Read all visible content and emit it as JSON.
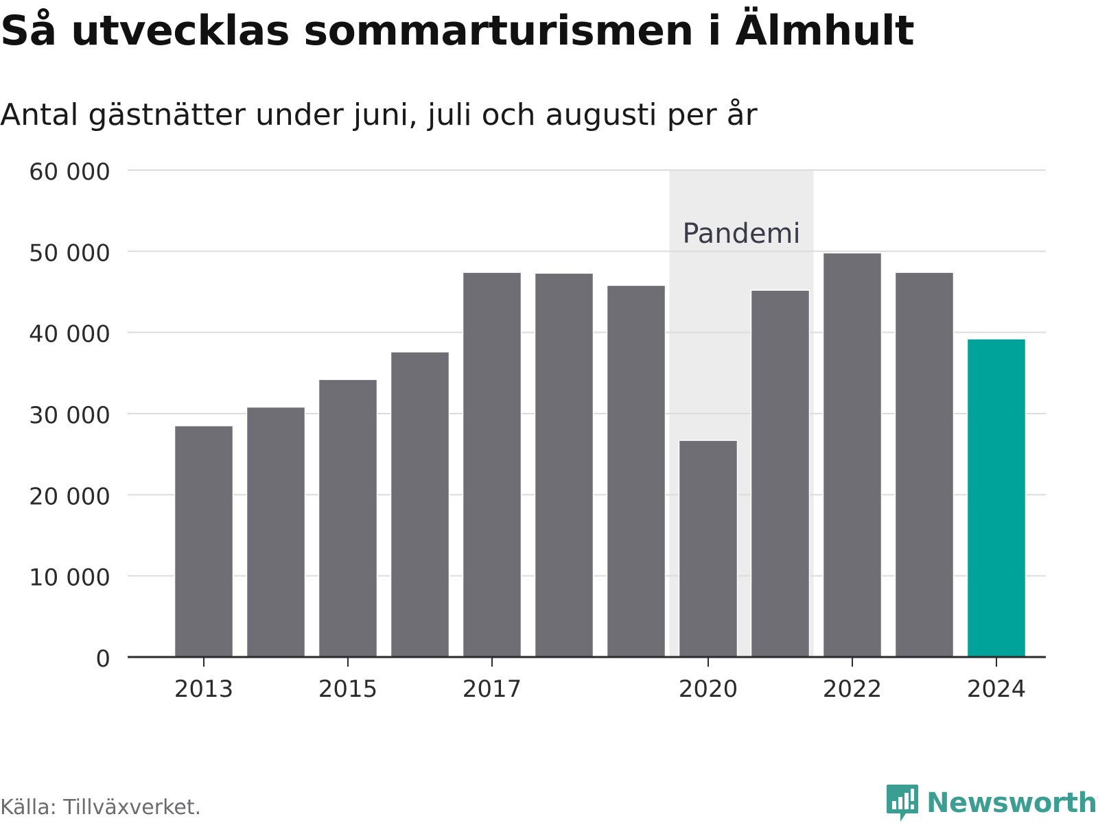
{
  "title": "Så utvecklas sommarturismen i Älmhult",
  "subtitle": "Antal gästnätter under juni, juli och augusti per år",
  "source": "Källa: Tillväxverket.",
  "brand": {
    "name": "Newsworthy",
    "icon": "newsworthy-logo-icon",
    "color": "#3a9e93"
  },
  "chart_data": {
    "type": "bar",
    "categories": [
      "2013",
      "2014",
      "2015",
      "2016",
      "2017",
      "2018",
      "2019",
      "2020",
      "2021",
      "2022",
      "2023",
      "2024"
    ],
    "values": [
      28500,
      30800,
      34200,
      37600,
      47400,
      47300,
      45800,
      26700,
      45200,
      49800,
      47400,
      39200
    ],
    "ylim": [
      0,
      60000
    ],
    "yticks": [
      0,
      10000,
      20000,
      30000,
      40000,
      50000,
      60000
    ],
    "ytick_labels": [
      "0",
      "10 000",
      "20 000",
      "30 000",
      "40 000",
      "50 000",
      "60 000"
    ],
    "xtick_labels": [
      "2013",
      "2015",
      "2017",
      "2020",
      "2022",
      "2024"
    ],
    "highlight": {
      "category": "2024",
      "color": "#00a39a"
    },
    "bar_color": "#6f6e75",
    "grid": true,
    "annotation": {
      "label": "Pandemi",
      "from": "2020",
      "to": "2021",
      "color": "#ececec"
    }
  }
}
